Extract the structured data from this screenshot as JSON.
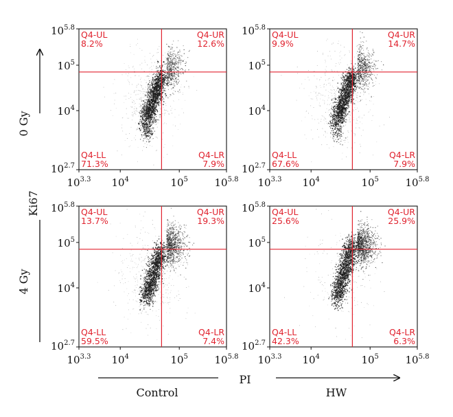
{
  "figure": {
    "ylabel": "Ki67",
    "xlabel": "PI",
    "row_labels": [
      "0 Gy",
      "4 Gy"
    ],
    "column_labels": [
      "Control",
      "HW"
    ]
  },
  "axis": {
    "scale": "log10",
    "x_range": [
      3.3,
      5.8
    ],
    "y_range": [
      2.7,
      5.8
    ],
    "x_ticks": [
      {
        "base": "10",
        "exp": "3.3",
        "value": 3.3
      },
      {
        "base": "10",
        "exp": "4",
        "value": 4
      },
      {
        "base": "10",
        "exp": "5",
        "value": 5
      },
      {
        "base": "10",
        "exp": "5.8",
        "value": 5.8
      }
    ],
    "y_ticks": [
      {
        "base": "10",
        "exp": "5.8",
        "value": 5.8
      },
      {
        "base": "10",
        "exp": "5",
        "value": 5
      },
      {
        "base": "10",
        "exp": "4",
        "value": 4
      },
      {
        "base": "10",
        "exp": "2.7",
        "value": 2.7
      }
    ]
  },
  "colors": {
    "gate": "#e0222e",
    "points": "#1a1a1a",
    "axis": "#111111"
  },
  "chart_data": [
    {
      "type": "scatter",
      "row": "0 Gy",
      "column": "Control",
      "gate": {
        "x": 4.7,
        "y": 4.85
      },
      "quadrants": {
        "UL": "8.2%",
        "UR": "12.6%",
        "LL": "71.3%",
        "LR": "7.9%"
      },
      "quadrant_names": {
        "UL": "Q4-UL",
        "UR": "Q4-UR",
        "LL": "Q4-LL",
        "LR": "Q4-LR"
      },
      "xlim": [
        3.3,
        5.8
      ],
      "ylim": [
        2.7,
        5.8
      ]
    },
    {
      "type": "scatter",
      "row": "0 Gy",
      "column": "HW",
      "gate": {
        "x": 4.7,
        "y": 4.85
      },
      "quadrants": {
        "UL": "9.9%",
        "UR": "14.7%",
        "LL": "67.6%",
        "LR": "7.9%"
      },
      "quadrant_names": {
        "UL": "Q4-UL",
        "UR": "Q4-UR",
        "LL": "Q4-LL",
        "LR": "Q4-LR"
      },
      "xlim": [
        3.3,
        5.8
      ],
      "ylim": [
        2.7,
        5.8
      ]
    },
    {
      "type": "scatter",
      "row": "4 Gy",
      "column": "Control",
      "gate": {
        "x": 4.7,
        "y": 4.85
      },
      "quadrants": {
        "UL": "13.7%",
        "UR": "19.3%",
        "LL": "59.5%",
        "LR": "7.4%"
      },
      "quadrant_names": {
        "UL": "Q4-UL",
        "UR": "Q4-UR",
        "LL": "Q4-LL",
        "LR": "Q4-LR"
      },
      "xlim": [
        3.3,
        5.8
      ],
      "ylim": [
        2.7,
        5.8
      ]
    },
    {
      "type": "scatter",
      "row": "4 Gy",
      "column": "HW",
      "gate": {
        "x": 4.7,
        "y": 4.85
      },
      "quadrants": {
        "UL": "25.6%",
        "UR": "25.9%",
        "LL": "42.3%",
        "LR": "6.3%"
      },
      "quadrant_names": {
        "UL": "Q4-UL",
        "UR": "Q4-UR",
        "LL": "Q4-LL",
        "LR": "Q4-LR"
      },
      "xlim": [
        3.3,
        5.8
      ],
      "ylim": [
        2.7,
        5.8
      ]
    }
  ]
}
